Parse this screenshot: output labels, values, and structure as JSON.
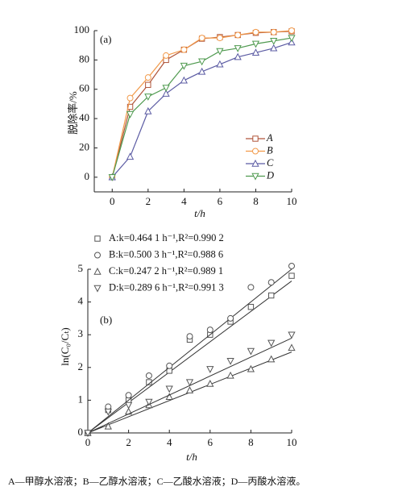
{
  "chart_data": [
    {
      "type": "line",
      "annotation": "(a)",
      "xlabel": "t/h",
      "ylabel": "脱除率/%",
      "x": [
        0,
        1,
        2,
        3,
        4,
        5,
        6,
        7,
        8,
        9,
        10
      ],
      "xlim": [
        -1,
        10
      ],
      "ylim": [
        -10,
        100
      ],
      "xticks": [
        0,
        2,
        4,
        6,
        8,
        10
      ],
      "yticks": [
        0,
        20,
        40,
        60,
        80,
        100
      ],
      "legend": "lower right",
      "series": [
        {
          "name": "A",
          "color": "#b0553a",
          "marker": "square",
          "values": [
            0,
            48,
            63,
            80,
            87,
            94.5,
            95.6,
            97,
            98.5,
            99,
            99.5
          ]
        },
        {
          "name": "B",
          "color": "#f29a4a",
          "marker": "circle",
          "values": [
            0,
            54,
            68,
            83,
            87,
            95,
            95,
            97,
            99,
            99,
            100
          ]
        },
        {
          "name": "C",
          "color": "#5b5ba3",
          "marker": "triangle",
          "values": [
            0,
            14,
            45,
            57,
            66,
            72,
            77,
            82,
            85,
            88,
            92
          ]
        },
        {
          "name": "D",
          "color": "#4f9a4f",
          "marker": "triangle-down",
          "values": [
            0,
            43,
            55,
            61,
            76,
            79,
            86,
            88,
            91,
            93,
            95
          ]
        }
      ]
    },
    {
      "type": "scatter",
      "annotation": "(b)",
      "xlabel": "t/h",
      "ylabel": "ln(C₀/Cₜ)",
      "x": [
        0,
        1,
        2,
        3,
        4,
        5,
        6,
        7,
        8,
        9,
        10
      ],
      "xlim": [
        0,
        10
      ],
      "ylim": [
        0,
        5
      ],
      "xticks": [
        0,
        2,
        4,
        6,
        8,
        10
      ],
      "yticks": [
        0,
        1,
        2,
        3,
        4,
        5
      ],
      "legend": "upper left",
      "series": [
        {
          "name": "A:k=0.464 1 h⁻¹,R²=0.990 2",
          "color": "#555555",
          "marker": "square",
          "fit_k": 0.4641,
          "values": [
            0,
            0.7,
            1.0,
            1.55,
            1.9,
            2.85,
            3.0,
            3.4,
            3.85,
            4.2,
            4.8
          ]
        },
        {
          "name": "B:k=0.500 3 h⁻¹,R²=0.988 6",
          "color": "#555555",
          "marker": "circle",
          "fit_k": 0.5003,
          "values": [
            0,
            0.8,
            1.15,
            1.75,
            2.05,
            2.95,
            3.15,
            3.5,
            4.45,
            4.6,
            5.1
          ]
        },
        {
          "name": "C:k=0.247 2 h⁻¹,R²=0.989 1",
          "color": "#555555",
          "marker": "triangle",
          "fit_k": 0.2472,
          "values": [
            0,
            0.2,
            0.65,
            0.85,
            1.1,
            1.3,
            1.5,
            1.75,
            1.95,
            2.25,
            2.6
          ]
        },
        {
          "name": "D:k=0.289 6 h⁻¹,R²=0.991 3",
          "color": "#555555",
          "marker": "triangle-down",
          "fit_k": 0.2896,
          "values": [
            0,
            0.65,
            0.85,
            0.95,
            1.35,
            1.55,
            1.95,
            2.2,
            2.5,
            2.75,
            3.0
          ]
        }
      ]
    }
  ],
  "footer": "A—甲醇水溶液；B—乙醇水溶液；C—乙酸水溶液；D—丙酸水溶液。"
}
